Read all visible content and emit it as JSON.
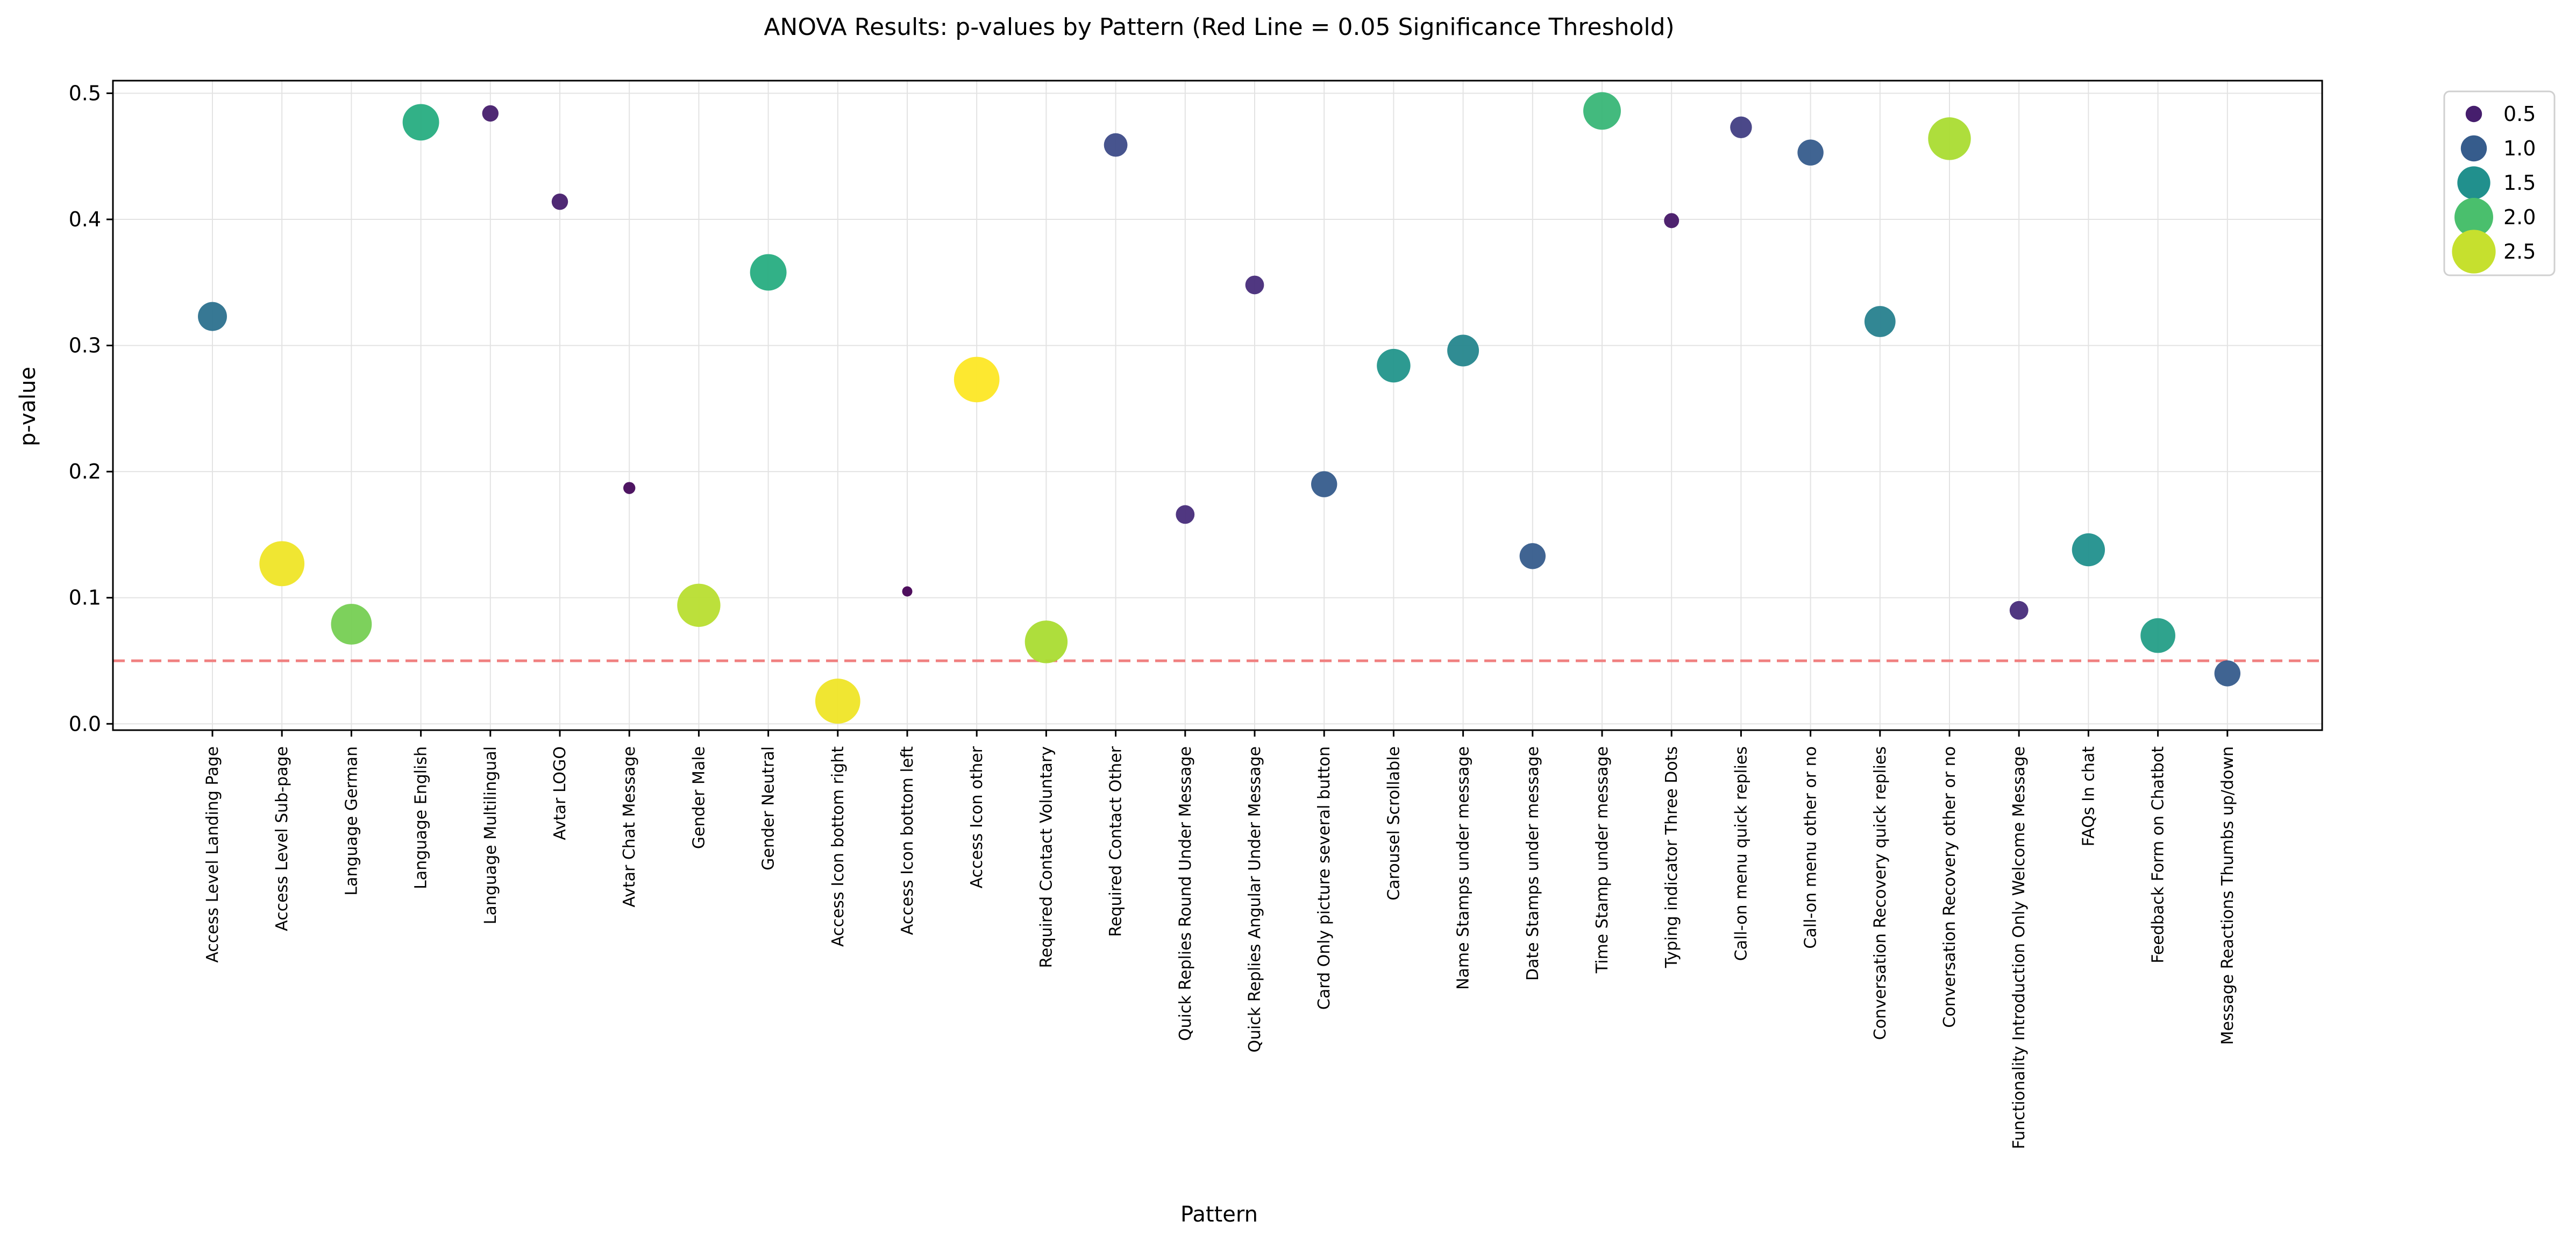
{
  "chart_data": {
    "type": "scatter",
    "title": "ANOVA Results: p-values by Pattern (Red Line = 0.05 Significance Threshold)",
    "xlabel": "Pattern",
    "ylabel": "p-value",
    "ylim": [
      -0.005,
      0.51
    ],
    "yticks": [
      "0.0",
      "0.1",
      "0.2",
      "0.3",
      "0.4",
      "0.5"
    ],
    "grid": true,
    "threshold": {
      "value": 0.05,
      "color": "#f08080",
      "style": "dashed"
    },
    "colormap": "viridis",
    "size_range": [
      0.3,
      2.7
    ],
    "legend": {
      "placement": "outside-top-right",
      "entries": [
        {
          "label": "0.5",
          "value": 0.5
        },
        {
          "label": "1.0",
          "value": 1.0
        },
        {
          "label": "1.5",
          "value": 1.5
        },
        {
          "label": "2.0",
          "value": 2.0
        },
        {
          "label": "2.5",
          "value": 2.5
        }
      ]
    },
    "points": [
      {
        "pattern": "Access Level Landing Page",
        "p": 0.323,
        "effect": 1.2
      },
      {
        "pattern": "Access Level Sub-page",
        "p": 0.127,
        "effect": 2.65
      },
      {
        "pattern": "Language German",
        "p": 0.079,
        "effect": 2.2
      },
      {
        "pattern": "Language English",
        "p": 0.477,
        "effect": 1.8
      },
      {
        "pattern": "Language Multilingual",
        "p": 0.484,
        "effect": 0.5
      },
      {
        "pattern": "Avtar LOGO",
        "p": 0.414,
        "effect": 0.5
      },
      {
        "pattern": "Avtar Chat Message",
        "p": 0.187,
        "effect": 0.35
      },
      {
        "pattern": "Gender Male",
        "p": 0.094,
        "effect": 2.45
      },
      {
        "pattern": "Gender Neutral",
        "p": 0.358,
        "effect": 1.8
      },
      {
        "pattern": "Access Icon bottom right",
        "p": 0.018,
        "effect": 2.65
      },
      {
        "pattern": "Access Icon bottom left",
        "p": 0.105,
        "effect": 0.3
      },
      {
        "pattern": "Access Icon other",
        "p": 0.273,
        "effect": 2.7
      },
      {
        "pattern": "Required Contact Voluntary",
        "p": 0.065,
        "effect": 2.4
      },
      {
        "pattern": "Required Contact Other",
        "p": 0.459,
        "effect": 0.85
      },
      {
        "pattern": "Quick Replies Round Under Message",
        "p": 0.166,
        "effect": 0.6
      },
      {
        "pattern": "Quick Replies Angular Under Message",
        "p": 0.348,
        "effect": 0.6
      },
      {
        "pattern": "Card Only picture several button",
        "p": 0.19,
        "effect": 1.0
      },
      {
        "pattern": "Carousel Scrollable",
        "p": 0.284,
        "effect": 1.55
      },
      {
        "pattern": "Name Stamps under message",
        "p": 0.296,
        "effect": 1.4
      },
      {
        "pattern": "Date Stamps under message",
        "p": 0.133,
        "effect": 1.0
      },
      {
        "pattern": "Time Stamp under message",
        "p": 0.486,
        "effect": 1.9
      },
      {
        "pattern": "Typing indicator Three Dots",
        "p": 0.399,
        "effect": 0.45
      },
      {
        "pattern": "Call-on menu quick replies",
        "p": 0.473,
        "effect": 0.75
      },
      {
        "pattern": "Call-on menu other or no",
        "p": 0.453,
        "effect": 1.0
      },
      {
        "pattern": "Conversation Recovery quick replies",
        "p": 0.319,
        "effect": 1.35
      },
      {
        "pattern": "Conversation Recovery other or no",
        "p": 0.464,
        "effect": 2.4
      },
      {
        "pattern": "Functionality Introduction Only Welcome Message",
        "p": 0.09,
        "effect": 0.6
      },
      {
        "pattern": "FAQs In chat",
        "p": 0.138,
        "effect": 1.5
      },
      {
        "pattern": "Feedback Form on Chatbot",
        "p": 0.07,
        "effect": 1.65
      },
      {
        "pattern": "Message Reactions Thumbs up/down",
        "p": 0.04,
        "effect": 1.0
      }
    ]
  }
}
